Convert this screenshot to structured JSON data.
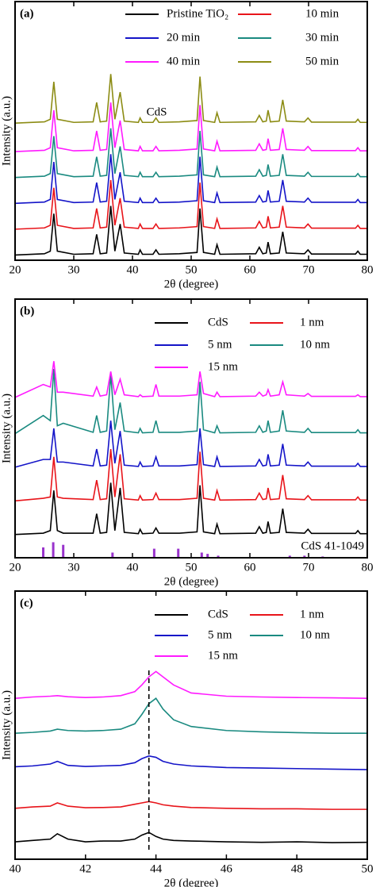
{
  "chart_data": [
    {
      "type": "line",
      "label": "(a)",
      "xlabel": "2θ (degree)",
      "ylabel": "Intensity (a.u.)",
      "annotation": "CdS",
      "xlim": [
        20,
        80
      ],
      "xticks": [
        20,
        30,
        40,
        50,
        60,
        70,
        80
      ],
      "ylim": [
        0,
        100
      ],
      "x": [
        20,
        25,
        26,
        26.6,
        27.2,
        30,
        33.3,
        33.9,
        34.5,
        35.6,
        36.3,
        37,
        37.9,
        38.6,
        41,
        41.3,
        41.7,
        43.5,
        44,
        44.5,
        48,
        51,
        51.5,
        52.1,
        54,
        54.4,
        54.9,
        61,
        61.6,
        62.2,
        62.8,
        63.1,
        63.5,
        65,
        65.6,
        66.2,
        69.3,
        69.9,
        70.5,
        78,
        78.4,
        78.8,
        80
      ],
      "series": [
        {
          "name": "Pristine TiO₂",
          "color": "#000000",
          "values": [
            2,
            2.5,
            3.5,
            18,
            3.5,
            2.3,
            2.5,
            10,
            2.5,
            2.8,
            21,
            3.5,
            14,
            2.8,
            2.3,
            4,
            2.3,
            2.3,
            4,
            2.3,
            2.5,
            3,
            20,
            3,
            2.3,
            6,
            2.3,
            2.5,
            5,
            2.5,
            2.8,
            7,
            2.5,
            2.8,
            11,
            2.8,
            2.5,
            4,
            2.4,
            2.4,
            3.5,
            2.3,
            2.3
          ]
        },
        {
          "name": "10 min",
          "color": "#e8141a",
          "values": [
            12,
            12.5,
            13.5,
            28,
            13.5,
            12.3,
            12.5,
            20,
            12.5,
            12.8,
            31,
            13.5,
            24,
            12.8,
            12.3,
            14,
            12.3,
            12.3,
            14,
            12.3,
            12.5,
            13,
            30,
            13,
            12.3,
            16,
            12.3,
            12.5,
            15,
            12.5,
            12.8,
            17,
            12.5,
            12.8,
            21,
            12.8,
            12.5,
            14,
            12.4,
            12.4,
            13.5,
            12.3,
            12.3
          ]
        },
        {
          "name": "20 min",
          "color": "#1414c8",
          "values": [
            22,
            22.5,
            23.5,
            38,
            23.5,
            22.3,
            22.5,
            30,
            22.5,
            22.8,
            41,
            23.5,
            34,
            22.8,
            22.3,
            24,
            22.3,
            22.3,
            24,
            22.3,
            22.5,
            23,
            40,
            23,
            22.3,
            26,
            22.3,
            22.5,
            25,
            22.5,
            22.8,
            27,
            22.5,
            22.8,
            31,
            22.8,
            22.5,
            24,
            22.4,
            22.4,
            23.5,
            22.3,
            22.3
          ]
        },
        {
          "name": "30 min",
          "color": "#1a8a80",
          "values": [
            32,
            32.5,
            33.5,
            48,
            33.5,
            32.3,
            32.5,
            40,
            32.5,
            32.8,
            51,
            33.5,
            44,
            32.8,
            32.3,
            34,
            32.3,
            32.3,
            34,
            32.3,
            32.5,
            33,
            50,
            33,
            32.3,
            36,
            32.3,
            32.5,
            35,
            32.5,
            32.8,
            37,
            32.5,
            32.8,
            41,
            32.8,
            32.5,
            34,
            32.4,
            32.4,
            33.5,
            32.3,
            32.3
          ]
        },
        {
          "name": "40 min",
          "color": "#ff1aff",
          "values": [
            42,
            42.5,
            43.5,
            58,
            43.5,
            42.3,
            42.5,
            50,
            42.5,
            42.8,
            61,
            43.5,
            54,
            42.8,
            42.3,
            44,
            42.3,
            42.3,
            44,
            42.3,
            42.5,
            43,
            60,
            43,
            42.3,
            46,
            42.3,
            42.5,
            45,
            42.5,
            42.8,
            47,
            42.5,
            42.8,
            51,
            42.8,
            42.5,
            44,
            42.4,
            42.4,
            43.5,
            42.3,
            42.3
          ]
        },
        {
          "name": "50 min",
          "color": "#8c8c14",
          "values": [
            53,
            53.5,
            54.5,
            69,
            54.5,
            53.3,
            53.5,
            61,
            53.5,
            53.8,
            72,
            54.5,
            65,
            53.8,
            53.3,
            55,
            53.3,
            53.3,
            55,
            53.3,
            53.5,
            54,
            71,
            54,
            53.3,
            57,
            53.3,
            53.5,
            56,
            53.5,
            53.8,
            58,
            53.5,
            53.8,
            62,
            53.8,
            53.5,
            55,
            53.4,
            53.4,
            54.5,
            53.3,
            53.3
          ]
        }
      ]
    },
    {
      "type": "line",
      "label": "(b)",
      "xlabel": "2θ (degree)",
      "ylabel": "Intensity (a.u.)",
      "xlim": [
        20,
        80
      ],
      "xticks": [
        20,
        30,
        40,
        50,
        60,
        70,
        80
      ],
      "ylim": [
        0,
        100
      ],
      "x": [
        20,
        24.8,
        26,
        26.6,
        27.2,
        28.2,
        33.3,
        33.9,
        34.5,
        35.6,
        36.3,
        37,
        37.9,
        38.6,
        41,
        41.3,
        41.7,
        43.5,
        44,
        44.5,
        48,
        51,
        51.5,
        52.1,
        54,
        54.4,
        54.9,
        61,
        61.6,
        62.2,
        62.8,
        63.1,
        63.5,
        65,
        65.6,
        66.2,
        69.3,
        69.9,
        70.5,
        78,
        78.4,
        78.8,
        80
      ],
      "series": [
        {
          "name": "CdS",
          "color": "#000000",
          "values": [
            9,
            9.5,
            10.5,
            26,
            10.5,
            9.5,
            9.5,
            17,
            9.5,
            9.8,
            29,
            10.5,
            27,
            9.8,
            9.3,
            11,
            9.3,
            9.5,
            11.5,
            9.5,
            9.5,
            10,
            28,
            10,
            9.3,
            13,
            9.3,
            9.5,
            12,
            9.5,
            9.8,
            14,
            9.5,
            9.8,
            19,
            9.8,
            9.5,
            11,
            9.4,
            9.4,
            10.5,
            9.3,
            9.3
          ]
        },
        {
          "name": "1 nm",
          "color": "#e8141a",
          "values": [
            22,
            23,
            23.5,
            39,
            23.5,
            23,
            22.5,
            30,
            22.5,
            22.8,
            42,
            23.5,
            40,
            22.8,
            22.3,
            24,
            22.3,
            22.5,
            25,
            22.5,
            22.5,
            23,
            41,
            23,
            22.3,
            26,
            22.3,
            22.5,
            25,
            22.5,
            22.8,
            27,
            22.5,
            22.8,
            32,
            22.8,
            22.5,
            24,
            22.4,
            22.4,
            23.5,
            22.3,
            22.3
          ]
        },
        {
          "name": "5 nm",
          "color": "#1414c8",
          "values": [
            35,
            38,
            38,
            50,
            37,
            37,
            35.5,
            42,
            35.5,
            35.8,
            53,
            36.5,
            49,
            35.8,
            35.3,
            37,
            35.3,
            35.5,
            39,
            35.5,
            35.5,
            36,
            50,
            36,
            35.3,
            39,
            35.3,
            35.5,
            38,
            35.5,
            35.8,
            40,
            35.5,
            35.8,
            44,
            35.8,
            35.5,
            37,
            35.4,
            35.4,
            36.5,
            35.3,
            35.3
          ]
        },
        {
          "name": "10 nm",
          "color": "#1a8a80",
          "values": [
            48,
            55,
            53,
            73,
            51,
            52,
            48.5,
            55,
            48.5,
            49,
            71,
            49.5,
            60,
            49,
            48.3,
            50,
            48.3,
            48.5,
            53,
            48.5,
            48.5,
            49,
            68,
            49.5,
            48.3,
            51,
            48.3,
            48.5,
            51,
            48.5,
            49,
            53,
            48.5,
            49,
            57,
            49,
            48.5,
            50,
            48.4,
            48.4,
            49.5,
            48.3,
            48.3
          ]
        },
        {
          "name": "15 nm",
          "color": "#ff1aff",
          "values": [
            62,
            67,
            66,
            76,
            64,
            64,
            62.5,
            66,
            62.5,
            63,
            72,
            63,
            69,
            63,
            62.3,
            63,
            62.3,
            62.5,
            67,
            62.5,
            62.5,
            63,
            72,
            63.5,
            62.3,
            64,
            62.3,
            62.5,
            64,
            62.5,
            63,
            65,
            62.5,
            63,
            68,
            63,
            62.5,
            63.5,
            62.4,
            62.4,
            63,
            62.3,
            62.3
          ]
        }
      ],
      "reference": {
        "name": "CdS 41-1049",
        "color": "#9933cc",
        "x": [
          24.8,
          26.5,
          28.2,
          36.6,
          43.7,
          47.8,
          51.8,
          52.8,
          54.6,
          66.8,
          69.3,
          72.4
        ],
        "values": [
          4,
          6,
          5,
          2,
          3.5,
          3.5,
          2,
          1.5,
          0.8,
          0.8,
          0.8,
          0.5
        ]
      }
    },
    {
      "type": "line",
      "label": "(c)",
      "xlabel": "2θ (degree)",
      "ylabel": "Intensity (a.u.)",
      "xlim": [
        40,
        50
      ],
      "xticks": [
        40,
        42,
        44,
        46,
        48,
        50
      ],
      "ylim": [
        0,
        100
      ],
      "vline": 43.8,
      "x": [
        40,
        40.5,
        41,
        41.2,
        41.5,
        42,
        42.5,
        43,
        43.4,
        43.6,
        43.8,
        44,
        44.2,
        44.5,
        45,
        46,
        47,
        48,
        49,
        50
      ],
      "series": [
        {
          "name": "CdS",
          "color": "#000000",
          "values": [
            6.5,
            7,
            7.5,
            9.5,
            7.5,
            6.5,
            6.8,
            6.8,
            7.5,
            9,
            10,
            8.5,
            7.5,
            7,
            6.8,
            6.5,
            6.3,
            6.5,
            6.2,
            6.3
          ]
        },
        {
          "name": "1 nm",
          "color": "#e8141a",
          "values": [
            19,
            19.5,
            19.8,
            21,
            19.8,
            19.2,
            19.3,
            19.5,
            20.5,
            21,
            21.5,
            21,
            20.3,
            19.8,
            19.3,
            19,
            18.8,
            18.8,
            18.6,
            18.6
          ]
        },
        {
          "name": "5 nm",
          "color": "#1414c8",
          "values": [
            34.5,
            34.8,
            35.5,
            36.5,
            35,
            34.6,
            34.8,
            35,
            36,
            37.5,
            38.5,
            38,
            36.5,
            35.5,
            34.8,
            34.2,
            34,
            33.8,
            33.6,
            33.4
          ]
        },
        {
          "name": "10 nm",
          "color": "#1a8a80",
          "values": [
            47,
            47.3,
            47.8,
            48.5,
            48,
            47.8,
            48,
            48.5,
            50.5,
            54,
            58,
            60,
            56,
            52,
            49.5,
            48,
            47.5,
            47.2,
            47,
            47
          ]
        },
        {
          "name": "15 nm",
          "color": "#ff1aff",
          "values": [
            60,
            60.5,
            60.8,
            61,
            60.6,
            60.3,
            60.5,
            61,
            62.5,
            65,
            68,
            70,
            68,
            65,
            62,
            60.8,
            60.5,
            60.3,
            60.2,
            60
          ]
        }
      ]
    }
  ]
}
